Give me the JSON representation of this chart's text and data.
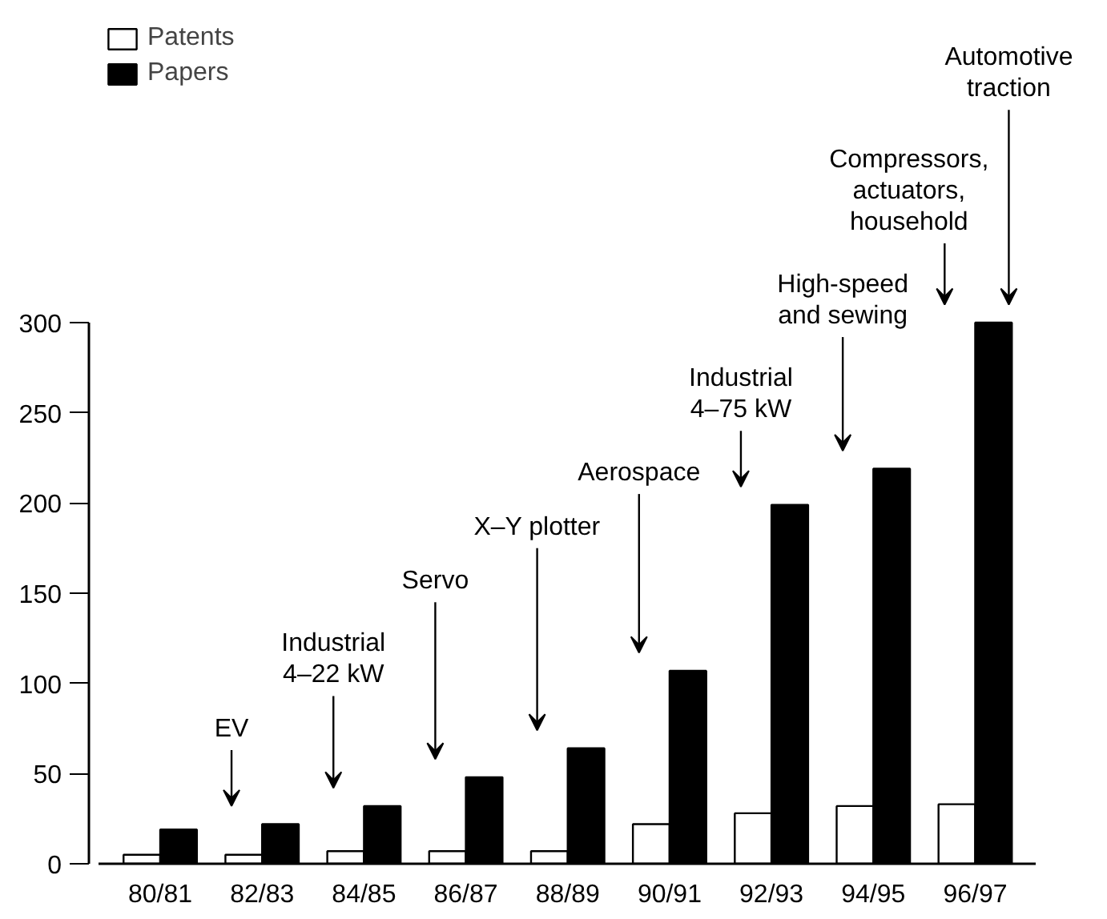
{
  "chart_data": {
    "type": "bar",
    "categories": [
      "80/81",
      "82/83",
      "84/85",
      "86/87",
      "88/89",
      "90/91",
      "92/93",
      "94/95",
      "96/97"
    ],
    "series": [
      {
        "name": "Patents",
        "color": "#ffffff",
        "values": [
          5,
          5,
          7,
          7,
          7,
          22,
          28,
          32,
          33
        ]
      },
      {
        "name": "Papers",
        "color": "#000000",
        "values": [
          19,
          22,
          32,
          48,
          64,
          107,
          199,
          219,
          300
        ]
      }
    ],
    "ylim": [
      0,
      300
    ],
    "yticks": [
      0,
      50,
      100,
      150,
      200,
      250,
      300
    ],
    "grid": false,
    "legend": "top left",
    "annotations": [
      "EV",
      "Industrial\n4–22 kW",
      "Servo",
      "X–Y plotter",
      "Aerospace",
      "Industrial\n4–75 kW",
      "High-speed\nand sewing",
      "Compressors,\nactuators,\nhousehold",
      "Automotive\ntraction"
    ]
  }
}
